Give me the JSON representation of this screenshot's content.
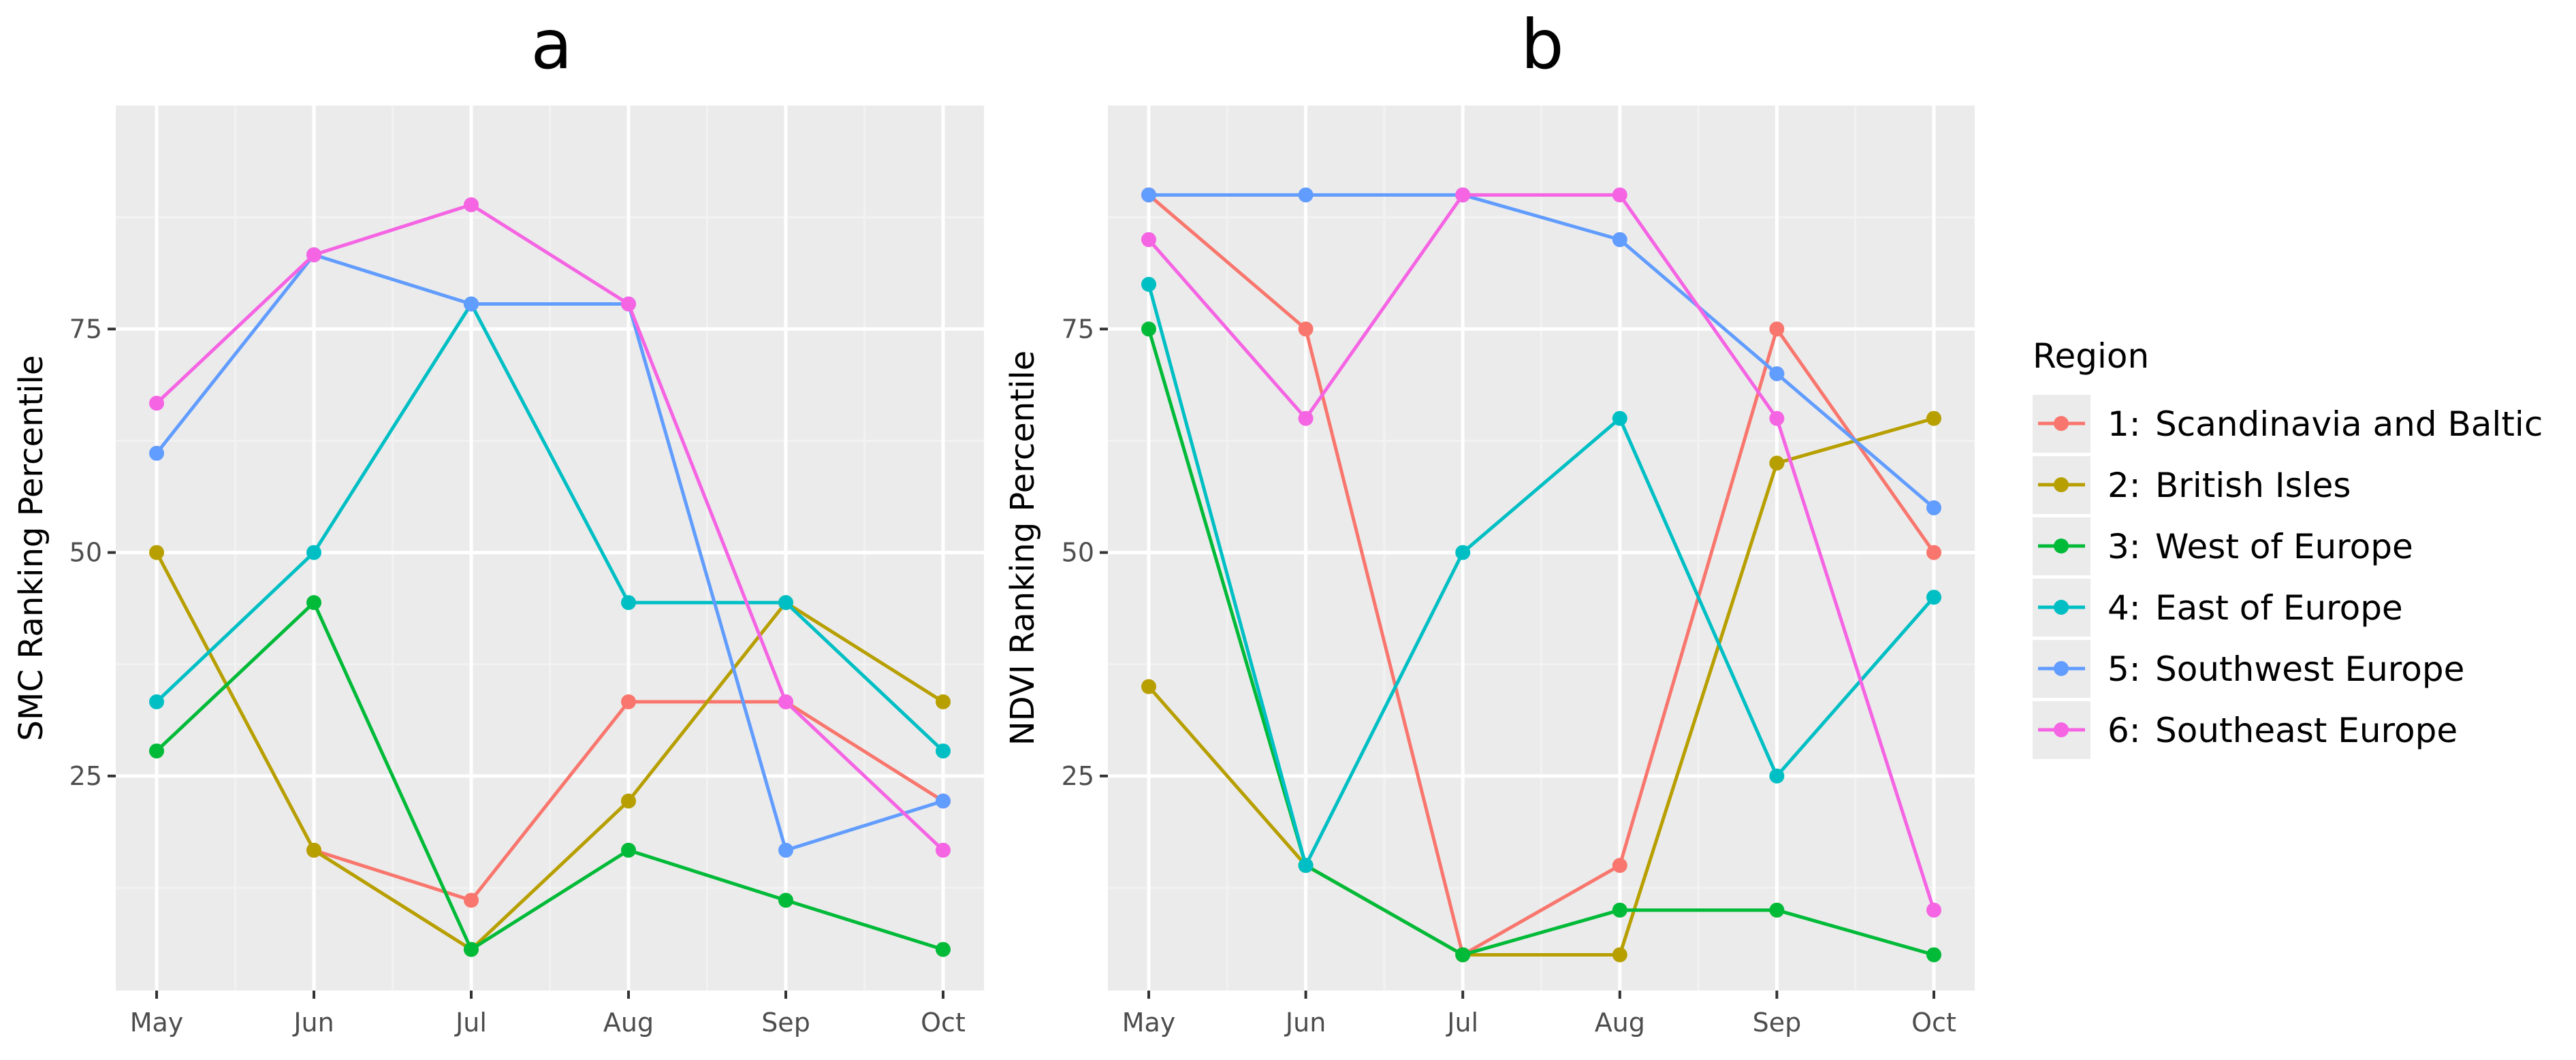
{
  "chart_data": [
    {
      "type": "line",
      "panel": "a",
      "title": "a",
      "xlabel": "",
      "ylabel": "SMC Ranking Percentile",
      "categories": [
        "May",
        "Jun",
        "Jul",
        "Aug",
        "Sep",
        "Oct"
      ],
      "yticks": [
        25,
        50,
        75
      ],
      "ylim": [
        1,
        100
      ],
      "grid": true,
      "series": [
        {
          "region": 1,
          "values": [
            null,
            16.7,
            11.1,
            33.3,
            33.3,
            22.2
          ]
        },
        {
          "region": 2,
          "values": [
            50,
            16.7,
            5.6,
            22.2,
            44.4,
            33.3
          ]
        },
        {
          "region": 3,
          "values": [
            27.8,
            44.4,
            5.6,
            16.7,
            11.1,
            5.6
          ]
        },
        {
          "region": 4,
          "values": [
            33.3,
            50,
            77.8,
            44.4,
            44.4,
            27.8
          ]
        },
        {
          "region": 5,
          "values": [
            61.1,
            83.3,
            77.8,
            77.8,
            16.7,
            22.2
          ]
        },
        {
          "region": 6,
          "values": [
            66.7,
            83.3,
            88.9,
            77.8,
            33.3,
            16.7
          ]
        }
      ]
    },
    {
      "type": "line",
      "panel": "b",
      "title": "b",
      "xlabel": "",
      "ylabel": "NDVI Ranking Percentile",
      "categories": [
        "May",
        "Jun",
        "Jul",
        "Aug",
        "Sep",
        "Oct"
      ],
      "yticks": [
        25,
        50,
        75
      ],
      "ylim": [
        1,
        100
      ],
      "grid": true,
      "series": [
        {
          "region": 1,
          "values": [
            90,
            75,
            5,
            15,
            75,
            50
          ]
        },
        {
          "region": 2,
          "values": [
            35,
            15,
            5,
            5,
            60,
            65
          ]
        },
        {
          "region": 3,
          "values": [
            75,
            15,
            5,
            10,
            10,
            5
          ]
        },
        {
          "region": 4,
          "values": [
            80,
            15,
            50,
            65,
            25,
            45
          ]
        },
        {
          "region": 5,
          "values": [
            90,
            90,
            90,
            85,
            70,
            55
          ]
        },
        {
          "region": 6,
          "values": [
            85,
            65,
            90,
            90,
            65,
            10
          ]
        }
      ]
    }
  ],
  "legend": {
    "title": "Region",
    "placement": "right",
    "items": [
      {
        "region": 1,
        "number": "1:",
        "label": "Scandinavia and Baltic",
        "color": "#F8766D"
      },
      {
        "region": 2,
        "number": "2:",
        "label": "British Isles",
        "color": "#B79F00"
      },
      {
        "region": 3,
        "number": "3:",
        "label": "West of Europe",
        "color": "#00BA38"
      },
      {
        "region": 4,
        "number": "4:",
        "label": "East of Europe",
        "color": "#00BFC4"
      },
      {
        "region": 5,
        "number": "5:",
        "label": "Southwest Europe",
        "color": "#619CFF"
      },
      {
        "region": 6,
        "number": "6:",
        "label": "Southeast Europe",
        "color": "#F564E3"
      }
    ]
  },
  "colors": {
    "panel_background": "#EBEBEB",
    "grid_major": "#FFFFFF",
    "grid_minor": "#F2F2F2",
    "tick_text": "#4D4D4D",
    "tick_mark": "#333333"
  }
}
